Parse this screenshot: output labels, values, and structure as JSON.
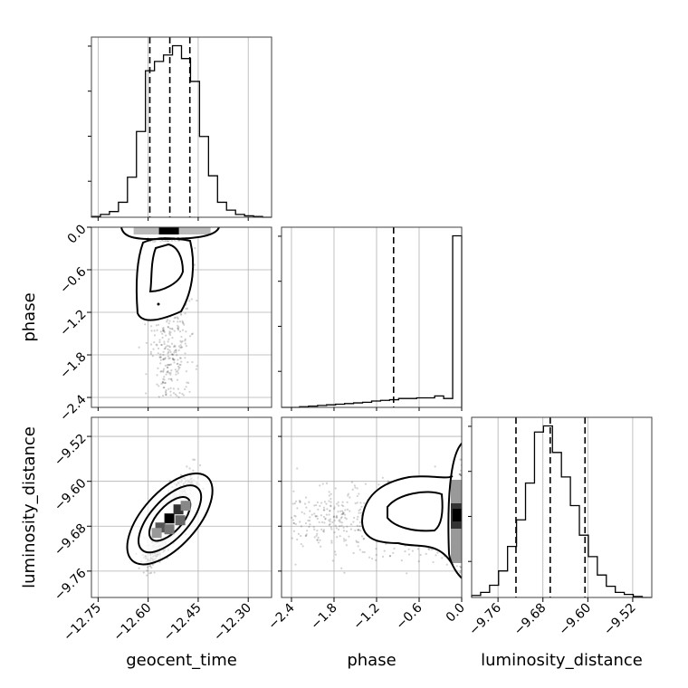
{
  "chart_data": {
    "type": "corner",
    "parameters": [
      "geocent_time",
      "phase",
      "luminosity_distance"
    ],
    "xlabels": [
      "geocent_time",
      "phase",
      "luminosity_distance"
    ],
    "ylabels": [
      "",
      "phase",
      "luminosity_distance"
    ],
    "ranges": {
      "geocent_time": [
        -12.77,
        -12.23
      ],
      "phase": [
        -2.54,
        0.0
      ],
      "luminosity_distance": [
        -9.807,
        -9.486
      ]
    },
    "ticks": {
      "geocent_time": [
        -12.75,
        -12.6,
        -12.45,
        -12.3
      ],
      "phase": [
        -2.4,
        -1.8,
        -1.2,
        -0.6,
        0.0
      ],
      "luminosity_distance": [
        -9.76,
        -9.68,
        -9.6,
        -9.52
      ]
    },
    "tick_labels": {
      "geocent_time": [
        "−12.75",
        "−12.60",
        "−12.45",
        "−12.30"
      ],
      "phase": [
        "−2.4",
        "−1.8",
        "−1.2",
        "−0.6",
        "0.0"
      ],
      "luminosity_distance": [
        "−9.76",
        "−9.68",
        "−9.60",
        "−9.52"
      ]
    },
    "quantiles": {
      "geocent_time": [
        -12.595,
        -12.535,
        -12.475
      ],
      "phase": [
        -0.96
      ],
      "luminosity_distance": [
        -9.728,
        -9.667,
        -9.605
      ]
    },
    "histograms": {
      "geocent_time": {
        "edges": [
          -12.77,
          -12.743,
          -12.716,
          -12.689,
          -12.662,
          -12.635,
          -12.608,
          -12.581,
          -12.554,
          -12.527,
          -12.5,
          -12.473,
          -12.446,
          -12.419,
          -12.392,
          -12.365,
          -12.338,
          -12.311,
          -12.284,
          -12.257,
          -12.23
        ],
        "counts": [
          1,
          4,
          8,
          21,
          56,
          120,
          205,
          218,
          227,
          240,
          222,
          190,
          113,
          58,
          21,
          10,
          4,
          2,
          1,
          0
        ]
      },
      "phase": {
        "edges": [
          -2.54,
          -2.413,
          -2.286,
          -2.159,
          -2.032,
          -1.905,
          -1.778,
          -1.651,
          -1.524,
          -1.397,
          -1.27,
          -1.143,
          -1.016,
          -0.889,
          -0.762,
          -0.635,
          -0.508,
          -0.381,
          -0.254,
          -0.127,
          0.0
        ],
        "counts": [
          0,
          0,
          1,
          2,
          3,
          4,
          5,
          6,
          7,
          8,
          10,
          11,
          12,
          14,
          14,
          15,
          15,
          18,
          14,
          270
        ]
      },
      "luminosity_distance": {
        "edges": [
          -9.807,
          -9.791,
          -9.775,
          -9.759,
          -9.743,
          -9.727,
          -9.711,
          -9.695,
          -9.679,
          -9.663,
          -9.647,
          -9.631,
          -9.615,
          -9.599,
          -9.583,
          -9.567,
          -9.551,
          -9.535,
          -9.519,
          -9.503,
          -9.487
        ],
        "counts": [
          2,
          5,
          12,
          26,
          50,
          76,
          112,
          162,
          168,
          142,
          118,
          90,
          61,
          40,
          22,
          11,
          5,
          3,
          1,
          0
        ]
      }
    },
    "grid": true
  }
}
